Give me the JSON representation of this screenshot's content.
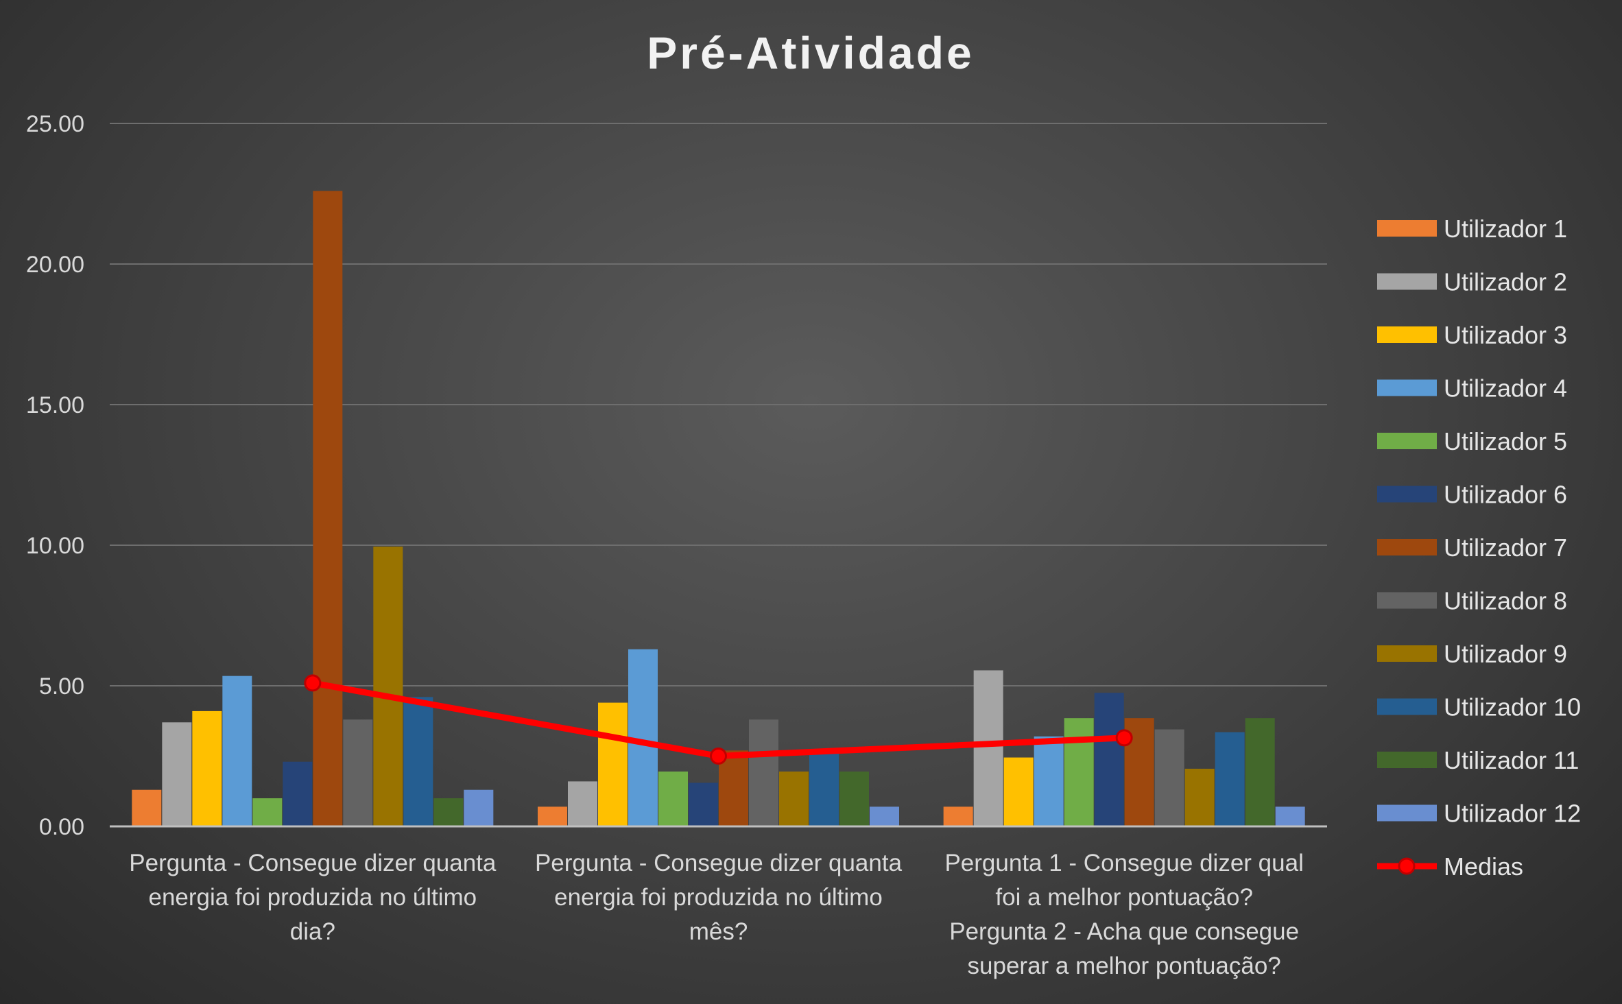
{
  "chart_data": {
    "type": "bar",
    "title": "Pré-Atividade",
    "xlabel": "",
    "ylabel": "",
    "ylim": [
      0,
      25
    ],
    "y_ticks": [
      "0.00",
      "5.00",
      "10.00",
      "15.00",
      "20.00",
      "25.00"
    ],
    "grid": true,
    "legend_position": "right",
    "categories": [
      [
        "Pergunta - Consegue dizer quanta",
        "energia foi produzida no último",
        "dia?"
      ],
      [
        "Pergunta - Consegue dizer quanta",
        "energia foi produzida no último",
        "mês?"
      ],
      [
        "Pergunta 1 - Consegue dizer qual",
        "foi a melhor pontuação?",
        "Pergunta 2 - Acha que consegue",
        "superar a melhor pontuação?"
      ]
    ],
    "series": [
      {
        "name": "Utilizador 1",
        "color": "#ed7d31",
        "values": [
          1.3,
          0.7,
          0.7
        ]
      },
      {
        "name": "Utilizador 2",
        "color": "#a5a5a5",
        "values": [
          3.7,
          1.6,
          5.55
        ]
      },
      {
        "name": "Utilizador 3",
        "color": "#ffc000",
        "values": [
          4.1,
          4.4,
          2.45
        ]
      },
      {
        "name": "Utilizador 4",
        "color": "#5b9bd5",
        "values": [
          5.35,
          6.3,
          3.2
        ]
      },
      {
        "name": "Utilizador 5",
        "color": "#70ad47",
        "values": [
          1.0,
          1.95,
          3.85
        ]
      },
      {
        "name": "Utilizador 6",
        "color": "#264478",
        "values": [
          2.3,
          1.55,
          4.75
        ]
      },
      {
        "name": "Utilizador 7",
        "color": "#9e480e",
        "values": [
          22.6,
          2.7,
          3.85
        ]
      },
      {
        "name": "Utilizador 8",
        "color": "#636363",
        "values": [
          3.8,
          3.8,
          3.45
        ]
      },
      {
        "name": "Utilizador 9",
        "color": "#997300",
        "values": [
          9.95,
          1.95,
          2.05
        ]
      },
      {
        "name": "Utilizador 10",
        "color": "#255e91",
        "values": [
          4.6,
          2.6,
          3.35
        ]
      },
      {
        "name": "Utilizador 11",
        "color": "#43682b",
        "values": [
          1.0,
          1.95,
          3.85
        ]
      },
      {
        "name": "Utilizador 12",
        "color": "#698ed0",
        "values": [
          1.3,
          0.7,
          0.7
        ]
      }
    ],
    "line_series": {
      "name": "Medias",
      "color": "#ff0000",
      "values": [
        5.1,
        2.5,
        3.15
      ]
    }
  }
}
